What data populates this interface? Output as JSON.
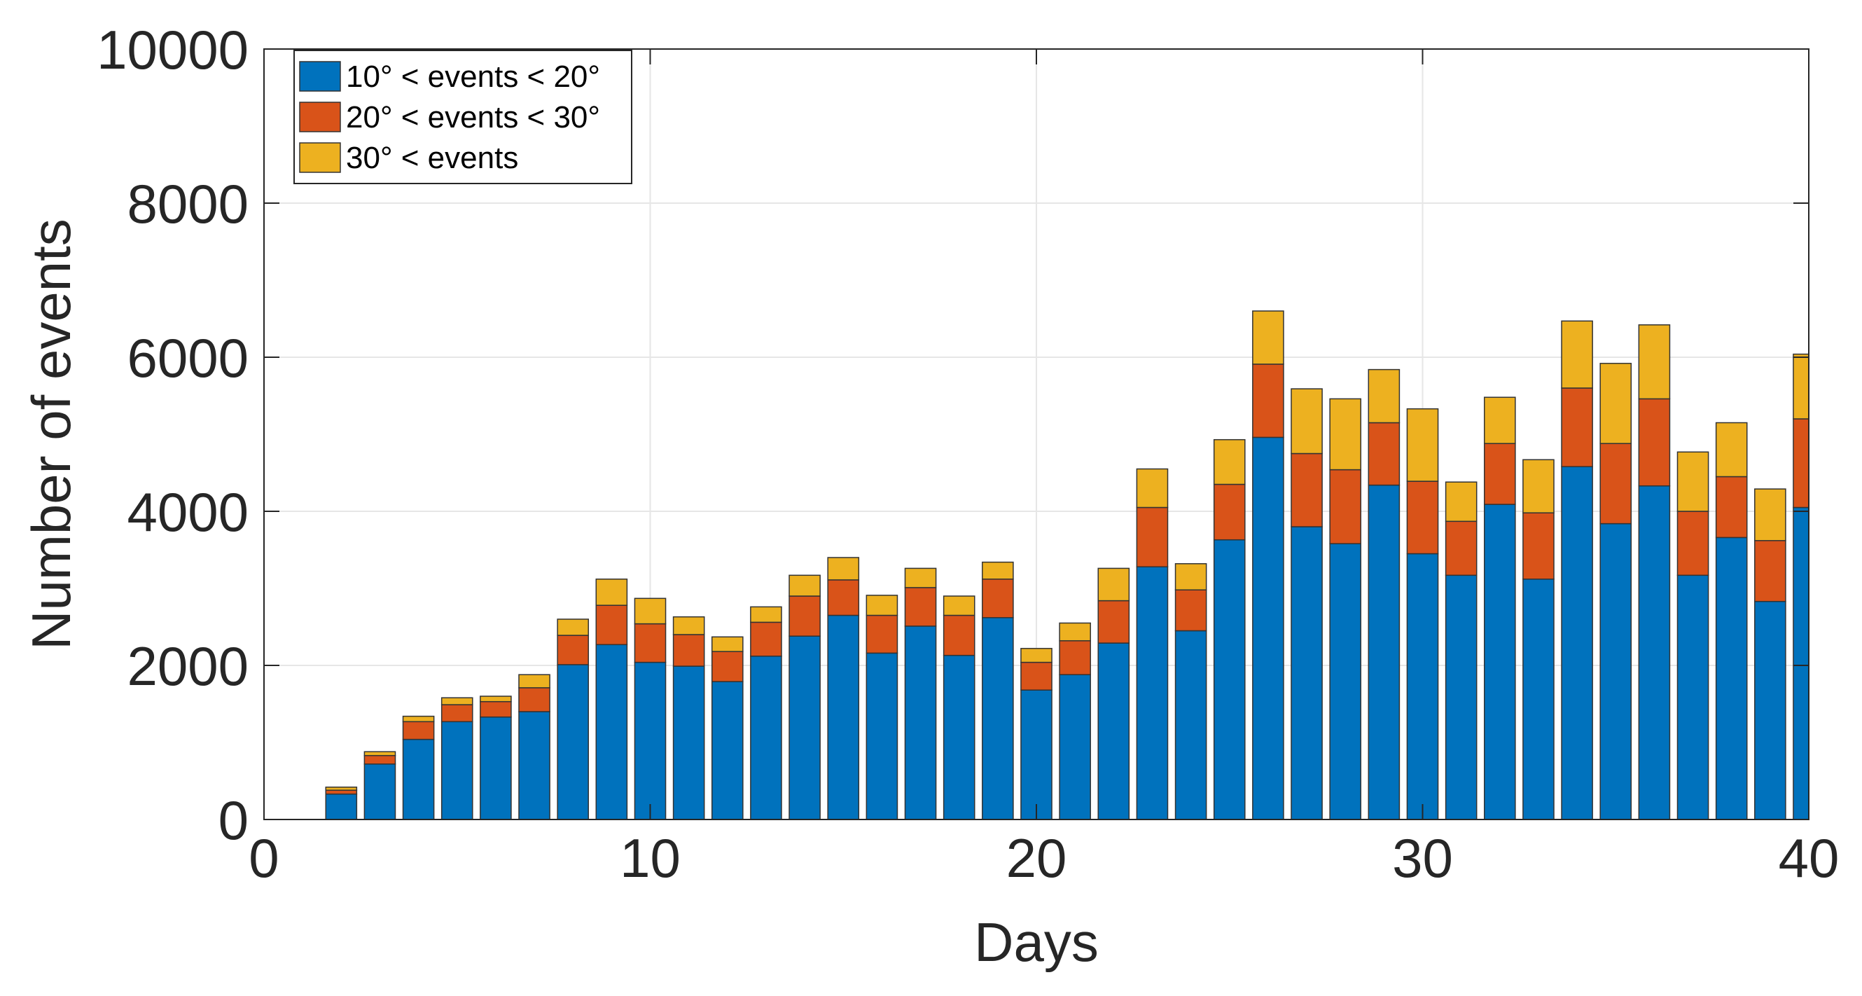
{
  "chart_data": {
    "type": "bar",
    "stacked": true,
    "title": "",
    "xlabel": "Days",
    "ylabel": "Number of events",
    "xlim": [
      0,
      40
    ],
    "ylim": [
      0,
      10000
    ],
    "xticks": [
      0,
      10,
      20,
      30,
      40
    ],
    "yticks": [
      0,
      2000,
      4000,
      6000,
      8000,
      10000
    ],
    "grid": true,
    "legend_position": "top-left",
    "x": [
      2,
      3,
      4,
      5,
      6,
      7,
      8,
      9,
      10,
      11,
      12,
      13,
      14,
      15,
      16,
      17,
      18,
      19,
      20,
      21,
      22,
      23,
      24,
      25,
      26,
      27,
      28,
      29,
      30,
      31,
      32,
      33,
      34,
      35,
      36,
      37,
      38,
      39,
      40
    ],
    "series": [
      {
        "name": "10° < events < 20°",
        "color": "#0072bd",
        "values": [
          330,
          720,
          1040,
          1270,
          1330,
          1400,
          2010,
          2270,
          2040,
          1990,
          1790,
          2120,
          2380,
          2650,
          2160,
          2510,
          2130,
          2620,
          1680,
          1880,
          2290,
          3280,
          2450,
          3630,
          4960,
          3800,
          3580,
          4340,
          3450,
          3170,
          4090,
          3120,
          4580,
          3840,
          4330,
          3170,
          3660,
          2830,
          4050
        ]
      },
      {
        "name": "20° < events < 30°",
        "color": "#d95319",
        "values": [
          50,
          110,
          230,
          220,
          200,
          310,
          380,
          510,
          500,
          410,
          390,
          440,
          520,
          460,
          490,
          500,
          520,
          500,
          360,
          440,
          550,
          770,
          530,
          720,
          950,
          950,
          960,
          810,
          940,
          700,
          790,
          860,
          1020,
          1040,
          1130,
          830,
          790,
          790,
          1150
        ]
      },
      {
        "name": "30° < events",
        "color": "#edb120",
        "values": [
          40,
          50,
          70,
          90,
          70,
          170,
          210,
          340,
          330,
          230,
          190,
          200,
          270,
          290,
          260,
          250,
          250,
          220,
          180,
          230,
          420,
          500,
          340,
          580,
          690,
          840,
          920,
          690,
          940,
          510,
          600,
          690,
          870,
          1040,
          960,
          770,
          700,
          670,
          840
        ]
      }
    ]
  }
}
